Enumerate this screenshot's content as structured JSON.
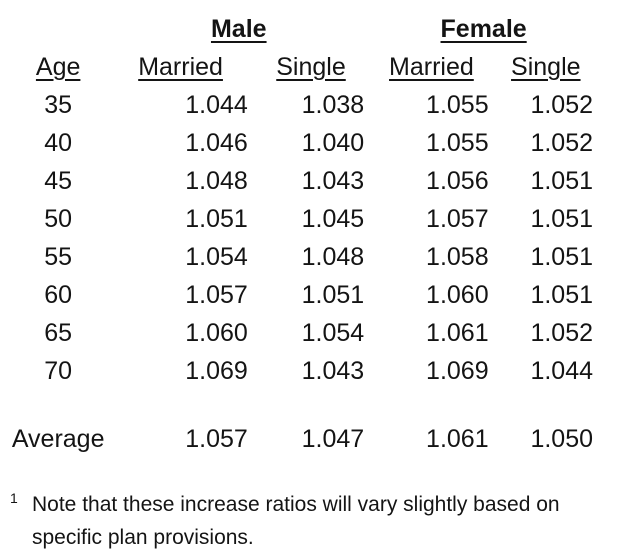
{
  "colors": {
    "text": "#141414",
    "background": "#ffffff"
  },
  "table": {
    "group_headers": {
      "male": "Male",
      "female": "Female"
    },
    "col_headers": {
      "age": "Age",
      "male_married": "Married",
      "male_single": "Single",
      "female_married": "Married",
      "female_single": "Single"
    },
    "rows": [
      {
        "age": "35",
        "values": [
          "1.044",
          "1.038",
          "1.055",
          "1.052"
        ]
      },
      {
        "age": "40",
        "values": [
          "1.046",
          "1.040",
          "1.055",
          "1.052"
        ]
      },
      {
        "age": "45",
        "values": [
          "1.048",
          "1.043",
          "1.056",
          "1.051"
        ]
      },
      {
        "age": "50",
        "values": [
          "1.051",
          "1.045",
          "1.057",
          "1.051"
        ]
      },
      {
        "age": "55",
        "values": [
          "1.054",
          "1.048",
          "1.058",
          "1.051"
        ]
      },
      {
        "age": "60",
        "values": [
          "1.057",
          "1.051",
          "1.060",
          "1.051"
        ]
      },
      {
        "age": "65",
        "values": [
          "1.060",
          "1.054",
          "1.061",
          "1.052"
        ]
      },
      {
        "age": "70",
        "values": [
          "1.069",
          "1.043",
          "1.069",
          "1.044"
        ]
      }
    ],
    "average_row": {
      "label": "Average",
      "values": [
        "1.057",
        "1.047",
        "1.061",
        "1.050"
      ]
    }
  },
  "footnote": {
    "marker": "1",
    "text": "Note that these increase ratios will vary slightly based on specific plan provisions."
  }
}
